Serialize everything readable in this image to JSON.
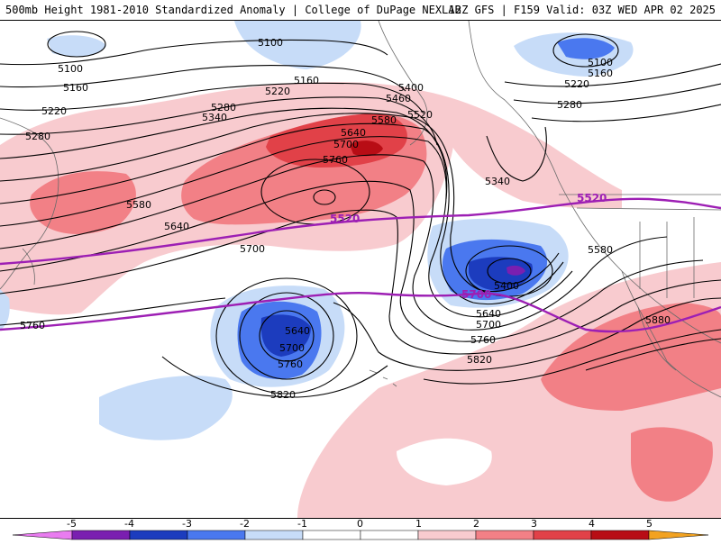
{
  "header": {
    "left": "500mb Height 1981-2010 Standardized Anomaly | College of DuPage NEXLAB",
    "right": "12Z GFS | F159 Valid: 03Z WED APR 02 2025"
  },
  "colors": {
    "neg5": "#e97cf0",
    "neg4": "#7a1fb0",
    "neg3": "#1c3cbe",
    "neg2": "#4a78ef",
    "neg1": "#c7dcf8",
    "zero": "#ffffff",
    "pos1": "#f8cbcf",
    "pos2": "#f28086",
    "pos3": "#e14148",
    "pos4": "#b80d15",
    "pos5": "#f2a220",
    "contour": "#000000",
    "thickness": "#9d1fb4"
  },
  "contour_labels": [
    {
      "text": "5100"
    },
    {
      "text": "5100"
    },
    {
      "text": "5160"
    },
    {
      "text": "5220"
    },
    {
      "text": "5160"
    },
    {
      "text": "5280"
    },
    {
      "text": "5220"
    },
    {
      "text": "5280"
    },
    {
      "text": "5340"
    },
    {
      "text": "5400"
    },
    {
      "text": "5460"
    },
    {
      "text": "5520"
    },
    {
      "text": "5580"
    },
    {
      "text": "5640"
    },
    {
      "text": "5700"
    },
    {
      "text": "5760"
    },
    {
      "text": "5580"
    },
    {
      "text": "5640"
    },
    {
      "text": "5700"
    },
    {
      "text": "5760"
    },
    {
      "text": "5340"
    },
    {
      "text": "5400"
    },
    {
      "text": "5640"
    },
    {
      "text": "5700"
    },
    {
      "text": "5760"
    },
    {
      "text": "5820"
    },
    {
      "text": "5640"
    },
    {
      "text": "5700"
    },
    {
      "text": "5760"
    },
    {
      "text": "5820"
    },
    {
      "text": "5100"
    },
    {
      "text": "5160"
    },
    {
      "text": "5220"
    },
    {
      "text": "5280"
    },
    {
      "text": "5580"
    },
    {
      "text": "5880"
    }
  ],
  "thickness_labels": [
    {
      "text": "5520"
    },
    {
      "text": "5520"
    },
    {
      "text": "5700"
    }
  ],
  "legend": {
    "ticks": [
      "-5",
      "-4",
      "-3",
      "-2",
      "-1",
      "0",
      "1",
      "2",
      "3",
      "4",
      "5"
    ]
  }
}
